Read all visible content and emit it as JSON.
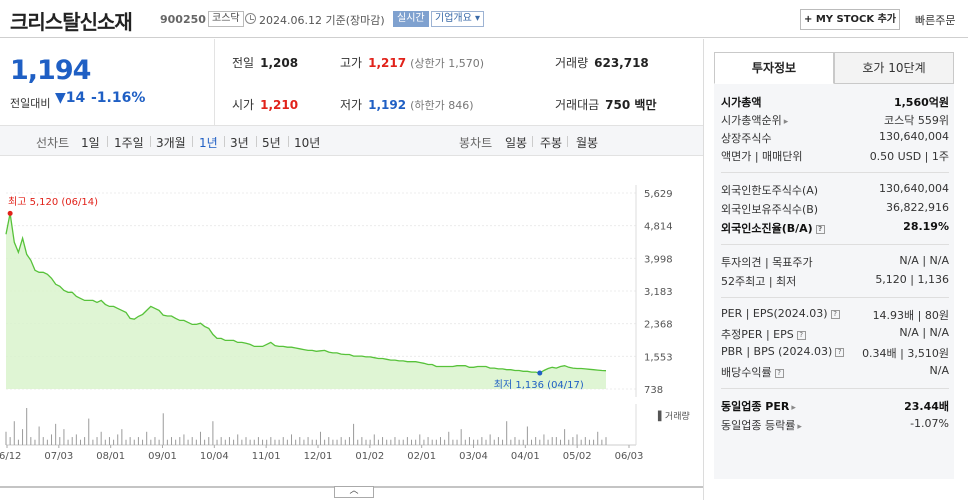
{
  "header": {
    "stock_name": "크리스탈신소재",
    "stock_code": "900250",
    "market": "코스닥",
    "date_basis": "2024.06.12 기준(장마감)",
    "realtime": "실시간",
    "company_info": "기업개요",
    "mystock_button": "+ MY STOCK 추가",
    "quick_order": "빠른주문"
  },
  "summary": {
    "current_price": "1,194",
    "change_label": "전일대비",
    "change_value": "14",
    "change_pct": "-1.16%",
    "prev_close": {
      "label": "전일",
      "value": "1,208"
    },
    "high": {
      "label": "고가",
      "value": "1,217",
      "limit_label": "(상한가 1,570)"
    },
    "volume": {
      "label": "거래량",
      "value": "623,718"
    },
    "open": {
      "label": "시가",
      "value": "1,210"
    },
    "low": {
      "label": "저가",
      "value": "1,192",
      "limit_label": "(하한가 846)"
    },
    "amount": {
      "label": "거래대금",
      "value": "750 백만"
    }
  },
  "periods": {
    "line_label": "선차트",
    "line_items": [
      "1일",
      "1주일",
      "3개월",
      "1년",
      "3년",
      "5년",
      "10년"
    ],
    "selected": "1년",
    "candle_label": "봉차트",
    "candle_items": [
      "일봉",
      "주봉",
      "월봉"
    ]
  },
  "chart_data": {
    "type": "area",
    "y_ticks": [
      5629,
      4814,
      3998,
      3183,
      2368,
      1553,
      738
    ],
    "y_tick_labels": [
      "5,629",
      "4,814",
      "3,998",
      "3,183",
      "2,368",
      "1,553",
      "738"
    ],
    "ylim": [
      738,
      5629
    ],
    "x_tick_labels": [
      "06/12",
      "07/03",
      "08/01",
      "09/01",
      "10/04",
      "11/01",
      "12/01",
      "01/02",
      "02/01",
      "03/04",
      "04/01",
      "05/02",
      "06/03"
    ],
    "high_label": "최고 5,120 (06/14)",
    "low_label": "최저 1,136 (04/17)",
    "volume_label": "거래량",
    "series": [
      {
        "values": [
          4600,
          5120,
          4400,
          4150,
          4500,
          4100,
          3950,
          3700,
          3650,
          3650,
          3600,
          3500,
          3350,
          3300,
          3200,
          3150,
          3150,
          3050,
          3000,
          2950,
          2950,
          2950,
          2900,
          2950,
          2850,
          2800,
          2800,
          2750,
          2700,
          2650,
          2500,
          2480,
          2550,
          2600,
          2700,
          2800,
          2750,
          2700,
          2580,
          2560,
          2560,
          2500,
          2450,
          2450,
          2400,
          2350,
          2350,
          2380,
          2300,
          2250,
          2100,
          2000,
          2000,
          1950,
          1950,
          1950,
          1900,
          1900,
          1880,
          1850,
          1800,
          1800,
          1800,
          1850,
          1900,
          1820,
          1800,
          1800,
          1780,
          1780,
          1760,
          1740,
          1720,
          1700,
          1700,
          1680,
          1690,
          1700,
          1660,
          1640,
          1640,
          1610,
          1600,
          1600,
          1560,
          1560,
          1560,
          1540,
          1540,
          1520,
          1500,
          1500,
          1480,
          1460,
          1460,
          1440,
          1440,
          1420,
          1420,
          1420,
          1400,
          1380,
          1350,
          1350,
          1300,
          1300,
          1300,
          1300,
          1300,
          1320,
          1320,
          1320,
          1280,
          1280,
          1300,
          1300,
          1300,
          1260,
          1260,
          1240,
          1240,
          1220,
          1220,
          1200,
          1200,
          1180,
          1180,
          1160,
          1160,
          1136,
          1200,
          1250,
          1280,
          1260,
          1300,
          1320,
          1280,
          1260,
          1250,
          1250,
          1240,
          1230,
          1220,
          1210,
          1200,
          1194
        ]
      }
    ],
    "volume_series": [
      5,
      3,
      9,
      2,
      6,
      14,
      3,
      2,
      7,
      3,
      2,
      4,
      8,
      3,
      6,
      2,
      3,
      4,
      2,
      3,
      10,
      2,
      3,
      5,
      2,
      3,
      2,
      4,
      6,
      2,
      3,
      2,
      3,
      2,
      5,
      2,
      3,
      2,
      12,
      2,
      3,
      2,
      3,
      4,
      2,
      3,
      2,
      5,
      2,
      3,
      9,
      2,
      3,
      2,
      3,
      2,
      4,
      2,
      3,
      2,
      2,
      3,
      2,
      2,
      3,
      2,
      2,
      3,
      2,
      4,
      2,
      3,
      2,
      3,
      2,
      2,
      5,
      2,
      3,
      2,
      2,
      3,
      2,
      3,
      8,
      2,
      3,
      2,
      2,
      4,
      2,
      3,
      2,
      2,
      3,
      2,
      2,
      3,
      2,
      2,
      4,
      2,
      3,
      2,
      2,
      3,
      2,
      5,
      2,
      2,
      6,
      2,
      3,
      2,
      2,
      3,
      2,
      4,
      2,
      3,
      2,
      9,
      2,
      3,
      2,
      2,
      7,
      2,
      3,
      2,
      4,
      2,
      3,
      3,
      2,
      6,
      2,
      3,
      4,
      2,
      3,
      2,
      2,
      5,
      2,
      3
    ]
  },
  "side": {
    "tab_active": "투자정보",
    "tab_other": "호가 10단계",
    "rows": [
      {
        "k": "시가총액",
        "v": "1,560억원"
      },
      {
        "k": "시가총액순위",
        "v": "코스닥 559위"
      },
      {
        "k": "상장주식수",
        "v": "130,640,004"
      },
      {
        "k": "액면가 | 매매단위",
        "v": "0.50 USD | 1주"
      },
      {
        "k": "외국인한도주식수(A)",
        "v": "130,640,004"
      },
      {
        "k": "외국인보유주식수(B)",
        "v": "36,822,916"
      },
      {
        "k": "외국인소진율(B/A)",
        "v": "28.19%"
      },
      {
        "k": "투자의견 | 목표주가",
        "v": "N/A | N/A"
      },
      {
        "k": "52주최고 | 최저",
        "v": "5,120 | 1,136"
      },
      {
        "k": "PER | EPS(2024.03)",
        "v": "14.93배 | 80원"
      },
      {
        "k": "추정PER | EPS",
        "v": "N/A | N/A"
      },
      {
        "k": "PBR | BPS (2024.03)",
        "v": "0.34배 | 3,510원"
      },
      {
        "k": "배당수익률",
        "v": "N/A"
      },
      {
        "k": "동일업종 PER",
        "v": "23.44배"
      },
      {
        "k": "동일업종 등락률",
        "v": "-1.07%"
      }
    ]
  },
  "colors": {
    "up": "#e1221a",
    "down": "#1f5fc4",
    "area_line": "#57c23a",
    "area_fill": "#d9f3cc"
  }
}
